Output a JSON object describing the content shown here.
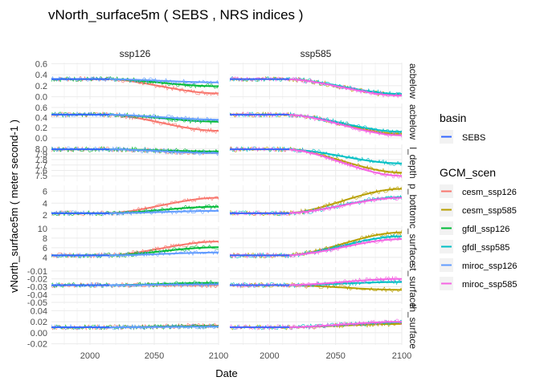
{
  "chart_data": {
    "type": "line",
    "title": "vNorth_surface5m ( SEBS , NRS indices )",
    "xlabel": "Date",
    "ylabel": "vNorth_surface5m ( meter second-1 )",
    "xlim": [
      1970,
      2100
    ],
    "x_ticks": [
      2000,
      2050,
      2100
    ],
    "columns": [
      "ssp126",
      "ssp585"
    ],
    "rows": [
      {
        "label": "acbelow",
        "ylim": [
          -0.05,
          0.62
        ],
        "ticks": [
          "0.6",
          "0.4",
          "0.2",
          "0.0"
        ],
        "tick_values": [
          0.6,
          0.4,
          0.2,
          0.0
        ]
      },
      {
        "label": "acbelow",
        "ylim": [
          -0.05,
          0.68
        ],
        "ticks": [
          "0.6",
          "0.4",
          "0.2",
          "0.0"
        ],
        "tick_values": [
          0.6,
          0.4,
          0.2,
          0.0
        ]
      },
      {
        "label": "l_depth",
        "ylim": [
          7.4,
          8.08
        ],
        "ticks": [
          "8.0",
          "7.9",
          "7.8",
          "7.7",
          "7.6",
          "7.5"
        ],
        "tick_values": [
          8.0,
          7.9,
          7.8,
          7.7,
          7.6,
          7.5
        ]
      },
      {
        "label": "p_bottom",
        "ylim": [
          0.8,
          7.0
        ],
        "ticks": [
          "6",
          "4",
          "2"
        ],
        "tick_values": [
          6,
          4,
          2
        ]
      },
      {
        "label": "c_surface",
        "ylim": [
          2.8,
          10.5
        ],
        "ticks": [
          "10",
          "8",
          "6",
          "4"
        ],
        "tick_values": [
          10,
          8,
          6,
          4
        ]
      },
      {
        "label": "st_surface",
        "ylim": [
          -0.052,
          -0.005
        ],
        "ticks": [
          "-0.01",
          "-0.02",
          "-0.03",
          "-0.04",
          "-0.05"
        ],
        "tick_values": [
          -0.01,
          -0.02,
          -0.03,
          -0.04,
          -0.05
        ]
      },
      {
        "label": "th_surface",
        "ylim": [
          -0.022,
          0.045
        ],
        "ticks": [
          "0.04",
          "0.02",
          "0.00",
          "-0.02"
        ],
        "tick_values": [
          0.04,
          0.02,
          0.0,
          -0.02
        ]
      }
    ],
    "series": [
      {
        "name": "cesm_ssp126",
        "color": "#F8766D",
        "scenario": "ssp126",
        "start": [
          0.32,
          0.46,
          7.99,
          2.3,
          4.4,
          -0.028,
          0.01
        ],
        "end": [
          0.06,
          0.14,
          7.92,
          4.9,
          7.3,
          -0.028,
          0.013
        ]
      },
      {
        "name": "cesm_ssp585",
        "color": "#B79F00",
        "scenario": "ssp585",
        "start": [
          0.32,
          0.46,
          7.99,
          2.3,
          4.4,
          -0.028,
          0.01
        ],
        "end": [
          0.03,
          0.08,
          7.56,
          6.4,
          9.2,
          -0.034,
          0.016
        ]
      },
      {
        "name": "gfdl_ssp126",
        "color": "#00BA38",
        "scenario": "ssp126",
        "start": [
          0.32,
          0.46,
          7.99,
          2.3,
          4.4,
          -0.028,
          0.01
        ],
        "end": [
          0.19,
          0.32,
          7.95,
          3.4,
          6.1,
          -0.025,
          0.012
        ]
      },
      {
        "name": "gfdl_ssp585",
        "color": "#00BFC4",
        "scenario": "ssp585",
        "start": [
          0.32,
          0.46,
          7.99,
          2.3,
          4.4,
          -0.028,
          0.01
        ],
        "end": [
          0.05,
          0.12,
          7.73,
          5.0,
          8.4,
          -0.024,
          0.019
        ]
      },
      {
        "name": "miroc_ssp126",
        "color": "#619CFF",
        "scenario": "ssp126",
        "start": [
          0.32,
          0.46,
          7.99,
          2.3,
          4.4,
          -0.028,
          0.01
        ],
        "end": [
          0.26,
          0.36,
          7.92,
          2.7,
          5.0,
          -0.027,
          0.011
        ]
      },
      {
        "name": "miroc_ssp585",
        "color": "#F564E3",
        "scenario": "ssp585",
        "start": [
          0.32,
          0.46,
          7.99,
          2.3,
          4.4,
          -0.028,
          0.01
        ],
        "end": [
          0.02,
          0.05,
          7.5,
          4.9,
          7.8,
          -0.02,
          0.02
        ]
      }
    ],
    "legends": [
      {
        "title": "basin",
        "entries": [
          {
            "label": "SEBS",
            "color": "#3366FF"
          }
        ]
      },
      {
        "title": "GCM_scen",
        "entries": [
          {
            "label": "cesm_ssp126",
            "color": "#F8766D"
          },
          {
            "label": "cesm_ssp585",
            "color": "#B79F00"
          },
          {
            "label": "gfdl_ssp126",
            "color": "#00BA38"
          },
          {
            "label": "gfdl_ssp585",
            "color": "#00BFC4"
          },
          {
            "label": "miroc_ssp126",
            "color": "#619CFF"
          },
          {
            "label": "miroc_ssp585",
            "color": "#F564E3"
          }
        ]
      }
    ],
    "legend_position": "right",
    "grid": true,
    "panel_background": "#FFFFFF",
    "grid_color": "#EBEBEB",
    "smooth_line_color": "#3366FF"
  }
}
